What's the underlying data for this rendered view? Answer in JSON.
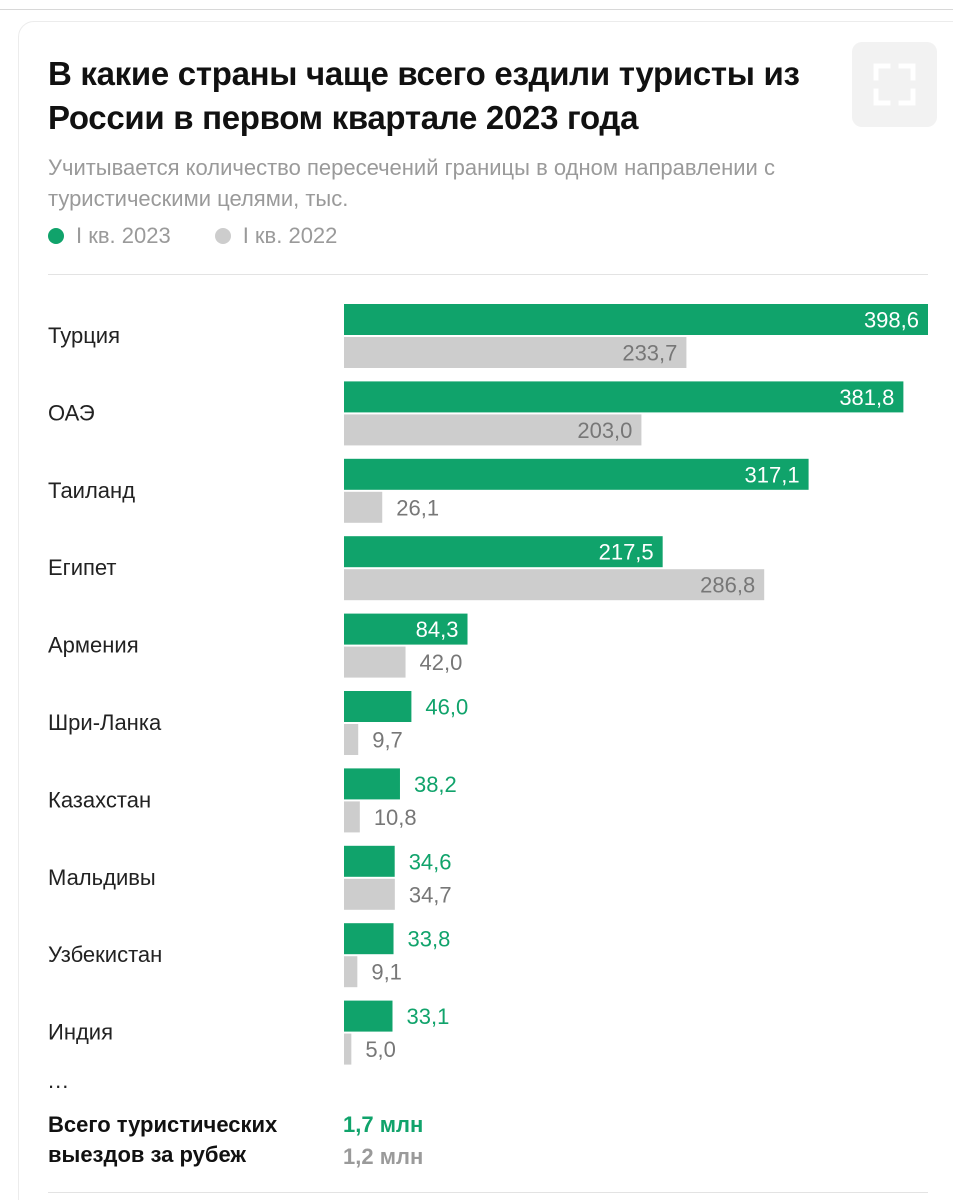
{
  "title": "В какие страны чаще всего ездили туристы из России в первом квартале 2023 года",
  "subtitle": "Учитывается количество пересечений границы в одном направлении с туристическими целями, тыс.",
  "icons": {
    "expand": "expand-icon"
  },
  "colors": {
    "series_2023": "#10a36b",
    "series_2022": "#cdcdcd",
    "label_2022": "#777777",
    "label_inside": "#ffffff",
    "total_2022": "#9a9a9a"
  },
  "legend": {
    "item_2023": "I кв. 2023",
    "item_2022": "I кв. 2022"
  },
  "chart_data": {
    "type": "bar",
    "orientation": "horizontal",
    "categories": [
      "Турция",
      "ОАЭ",
      "Таиланд",
      "Египет",
      "Армения",
      "Шри-Ланка",
      "Казахстан",
      "Мальдивы",
      "Узбекистан",
      "Индия"
    ],
    "series": [
      {
        "name": "I кв. 2023",
        "values": [
          398.6,
          381.8,
          317.1,
          217.5,
          84.3,
          46.0,
          38.2,
          34.6,
          33.8,
          33.1
        ],
        "labels": [
          "398,6",
          "381,8",
          "317,1",
          "217,5",
          "84,3",
          "46,0",
          "38,2",
          "34,6",
          "33,8",
          "33,1"
        ]
      },
      {
        "name": "I кв. 2022",
        "values": [
          233.7,
          203.0,
          26.1,
          286.8,
          42.0,
          9.7,
          10.8,
          34.7,
          9.1,
          5.0
        ],
        "labels": [
          "233,7",
          "203,0",
          "26,1",
          "286,8",
          "42,0",
          "9,7",
          "10,8",
          "34,7",
          "9,1",
          "5,0"
        ]
      }
    ],
    "xlim": [
      0,
      398.6
    ],
    "grid": false,
    "legend_position": "top-left"
  },
  "footer": {
    "ellipsis": "...",
    "total_label": "Всего туристических выездов за рубеж",
    "total_2023": "1,7 млн",
    "total_2022": "1,2 млн"
  }
}
